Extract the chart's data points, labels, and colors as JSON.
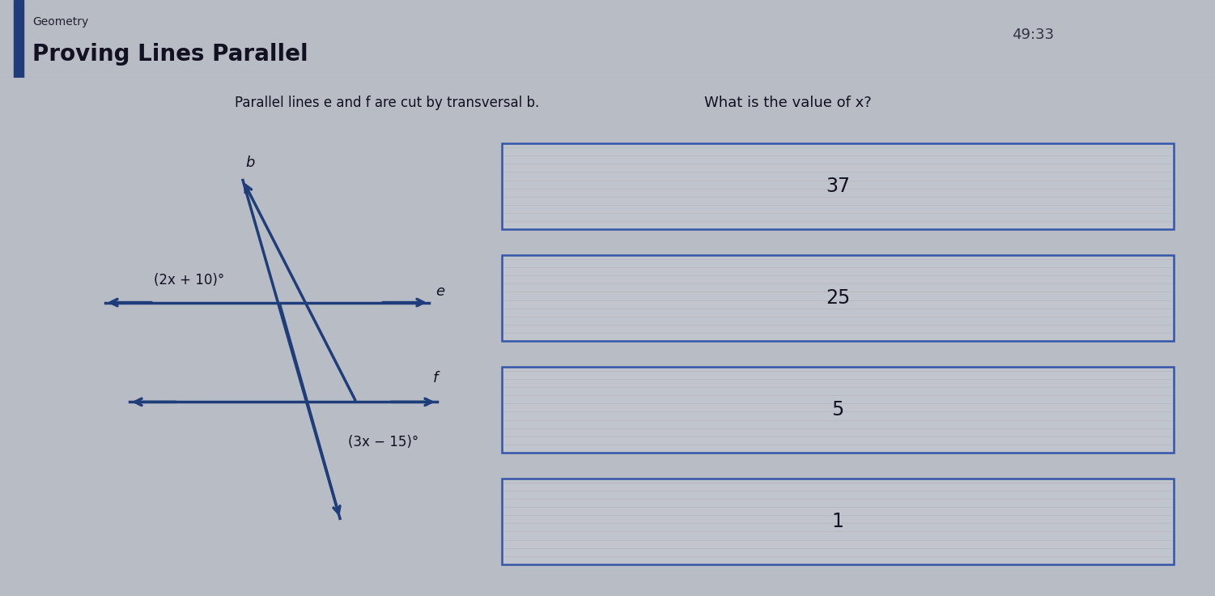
{
  "title": "Proving Lines Parallel",
  "subtitle": "Geometry",
  "question_left": "Parallel lines e and f are cut by transversal b.",
  "question_right": "What is the value of x?",
  "timer": "49:33",
  "answers": [
    "37",
    "25",
    "5",
    "1"
  ],
  "angle_e_label": "(2x + 10)°",
  "angle_f_label": "(3x − 15)°",
  "line_b_label": "b",
  "line_e_label": "e",
  "line_f_label": "f",
  "bg_color": "#b8bcc4",
  "header_bg": "#c8ccd4",
  "box_fill": "#c0c4cc",
  "box_border": "#3355aa",
  "line_color": "#1e3d7a",
  "text_color": "#111122",
  "stripe_color": "#aaaaaa",
  "left_bar_color": "#1e3d7a",
  "header_line_color": "#888888"
}
